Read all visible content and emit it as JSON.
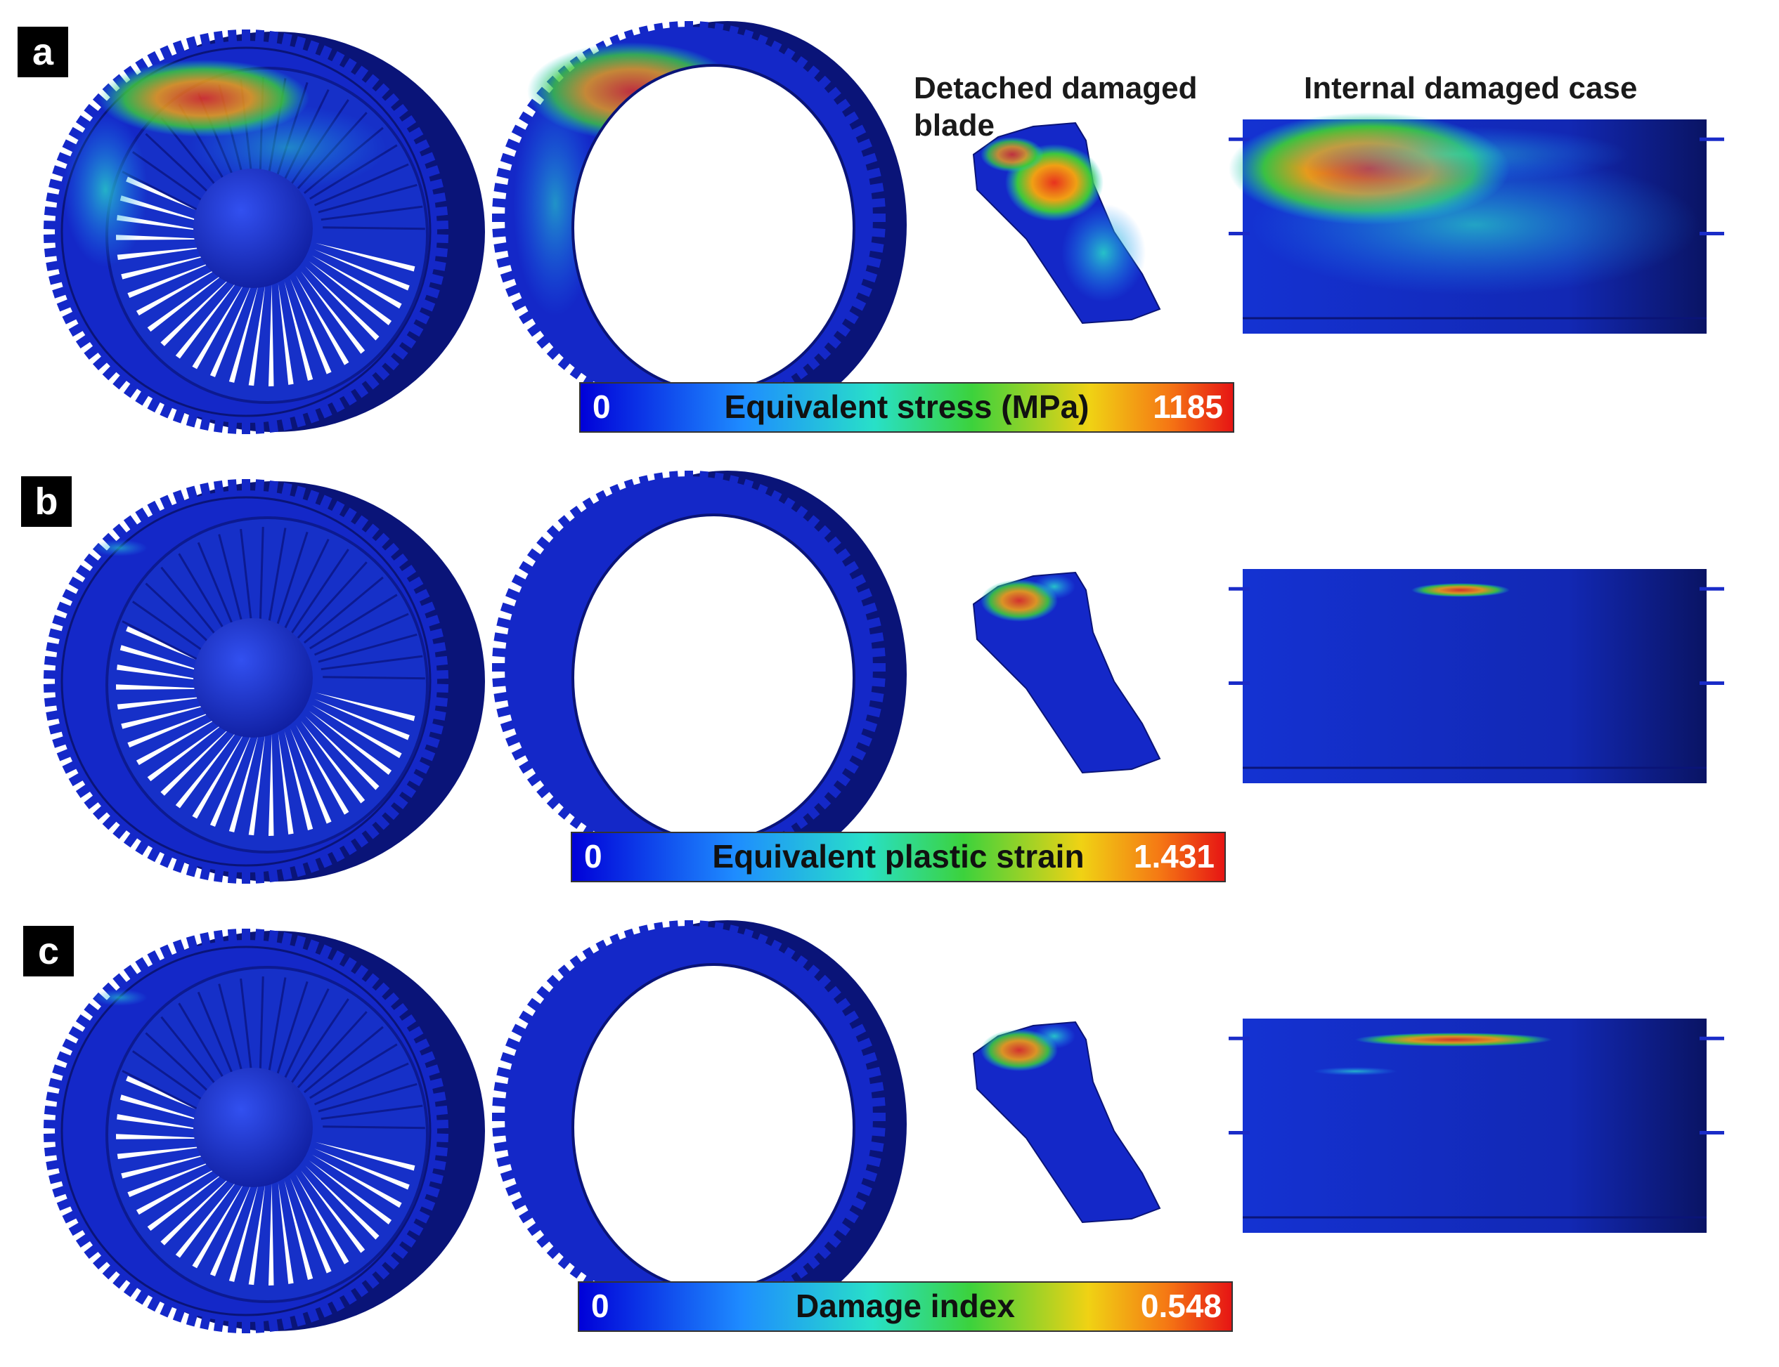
{
  "panels": [
    {
      "label": "a",
      "colorbar": {
        "min": "0",
        "title": "Equivalent stress (MPa)",
        "max": "1185"
      },
      "variant": "stress"
    },
    {
      "label": "b",
      "colorbar": {
        "min": "0",
        "title": "Equivalent plastic strain",
        "max": "1.431"
      },
      "variant": "strain"
    },
    {
      "label": "c",
      "colorbar": {
        "min": "0",
        "title": "Damage index",
        "max": "0.548"
      },
      "variant": "damage"
    }
  ],
  "column_labels": {
    "blade": [
      "Detached damaged",
      "blade"
    ],
    "case": "Internal damaged case"
  },
  "colors": {
    "model_blue": "#1428c8",
    "dark_blue": "#0a1478",
    "hot": "#e8321e",
    "warm": "#f0c814",
    "mid": "#3cc83c",
    "cool": "#14c8d2"
  }
}
